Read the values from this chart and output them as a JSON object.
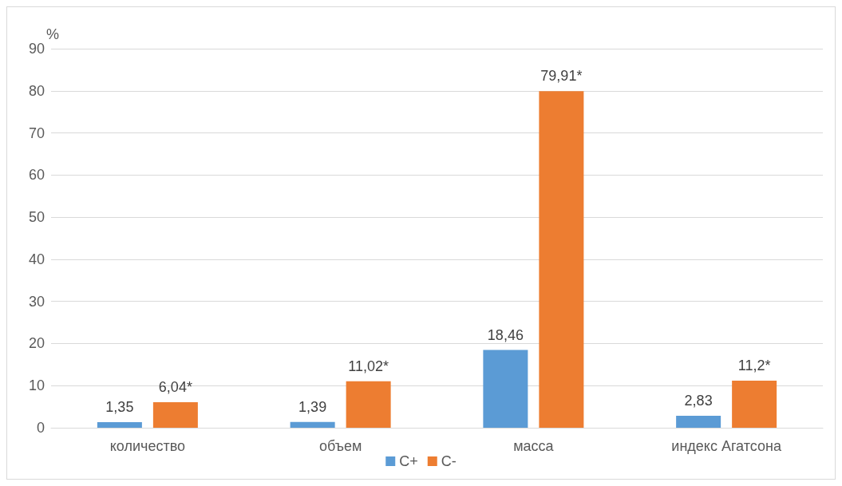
{
  "chart_data": {
    "type": "bar",
    "ylabel": "%",
    "categories": [
      "количество",
      "объем",
      "масса",
      "индекс Агатсона"
    ],
    "series": [
      {
        "name": "С+",
        "color": "#5b9bd5",
        "values": [
          1.35,
          1.39,
          18.46,
          2.83
        ],
        "value_labels": [
          "1,35",
          "1,39",
          "18,46",
          "2,83"
        ]
      },
      {
        "name": "С-",
        "color": "#ed7d31",
        "values": [
          6.04,
          11.02,
          79.91,
          11.2
        ],
        "value_labels": [
          "6,04*",
          "11,02*",
          "79,91*",
          "11,2*"
        ]
      }
    ],
    "ylim": [
      0,
      90
    ],
    "yticks": [
      0,
      10,
      20,
      30,
      40,
      50,
      60,
      70,
      80,
      90
    ],
    "grid": "y",
    "legend": "bottom"
  }
}
